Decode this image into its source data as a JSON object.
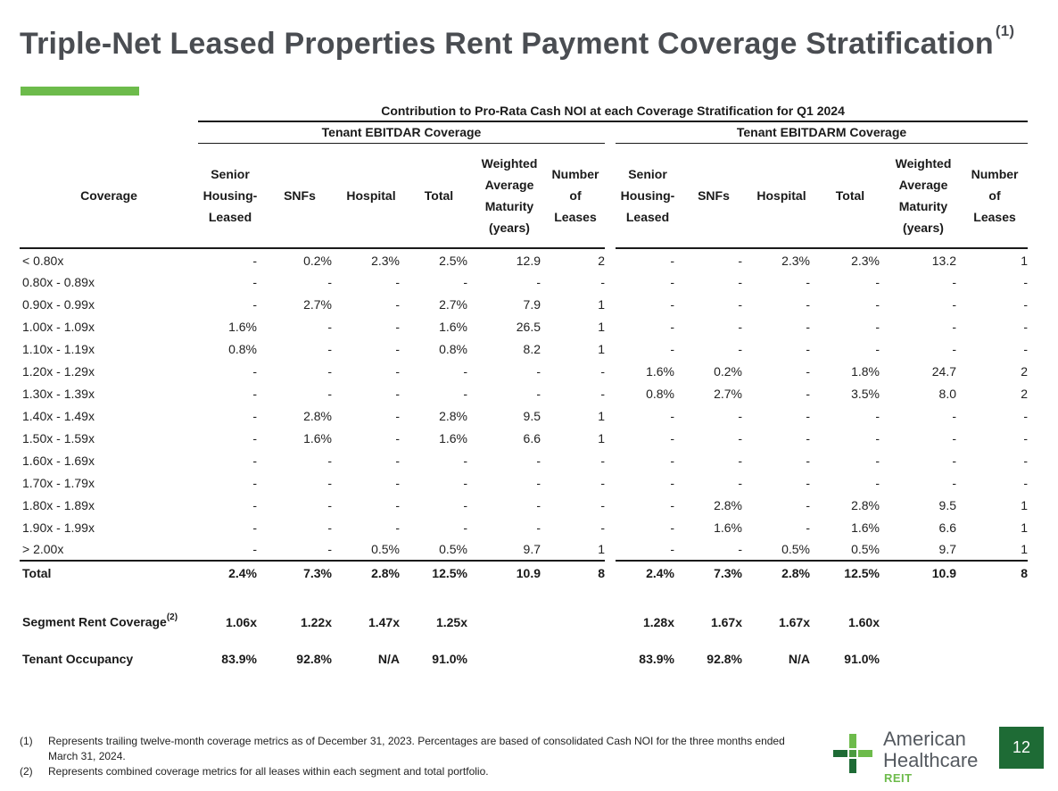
{
  "title": "Triple-Net Leased Properties Rent Payment Coverage Stratification",
  "title_sup": "(1)",
  "colors": {
    "accent": "#6dbb4b",
    "title": "#4a4d52",
    "badge": "#1e6b35"
  },
  "table": {
    "super_header": "Contribution to Pro-Rata Cash NOI at each Coverage Stratification for Q1 2024",
    "group_ebitdar": "Tenant EBITDAR Coverage",
    "group_ebitdarm": "Tenant EBITDARM Coverage",
    "col_coverage": "Coverage",
    "cols": {
      "senior": [
        "Senior",
        "Housing-",
        "Leased"
      ],
      "snfs": "SNFs",
      "hospital": "Hospital",
      "total": "Total",
      "wam": [
        "Weighted",
        "Average",
        "Maturity",
        "(years)"
      ],
      "leases": [
        "Number",
        "of",
        "Leases"
      ]
    },
    "rows": [
      {
        "label": "< 0.80x",
        "a": [
          "-",
          "0.2%",
          "2.3%",
          "2.5%",
          "12.9",
          "2"
        ],
        "b": [
          "-",
          "-",
          "2.3%",
          "2.3%",
          "13.2",
          "1"
        ]
      },
      {
        "label": "0.80x - 0.89x",
        "a": [
          "-",
          "-",
          "-",
          "-",
          "-",
          "-"
        ],
        "b": [
          "-",
          "-",
          "-",
          "-",
          "-",
          "-"
        ]
      },
      {
        "label": "0.90x - 0.99x",
        "a": [
          "-",
          "2.7%",
          "-",
          "2.7%",
          "7.9",
          "1"
        ],
        "b": [
          "-",
          "-",
          "-",
          "-",
          "-",
          "-"
        ]
      },
      {
        "label": "1.00x - 1.09x",
        "a": [
          "1.6%",
          "-",
          "-",
          "1.6%",
          "26.5",
          "1"
        ],
        "b": [
          "-",
          "-",
          "-",
          "-",
          "-",
          "-"
        ]
      },
      {
        "label": "1.10x - 1.19x",
        "a": [
          "0.8%",
          "-",
          "-",
          "0.8%",
          "8.2",
          "1"
        ],
        "b": [
          "-",
          "-",
          "-",
          "-",
          "-",
          "-"
        ]
      },
      {
        "label": "1.20x - 1.29x",
        "a": [
          "-",
          "-",
          "-",
          "-",
          "-",
          "-"
        ],
        "b": [
          "1.6%",
          "0.2%",
          "-",
          "1.8%",
          "24.7",
          "2"
        ]
      },
      {
        "label": "1.30x - 1.39x",
        "a": [
          "-",
          "-",
          "-",
          "-",
          "-",
          "-"
        ],
        "b": [
          "0.8%",
          "2.7%",
          "-",
          "3.5%",
          "8.0",
          "2"
        ]
      },
      {
        "label": "1.40x - 1.49x",
        "a": [
          "-",
          "2.8%",
          "-",
          "2.8%",
          "9.5",
          "1"
        ],
        "b": [
          "-",
          "-",
          "-",
          "-",
          "-",
          "-"
        ]
      },
      {
        "label": "1.50x - 1.59x",
        "a": [
          "-",
          "1.6%",
          "-",
          "1.6%",
          "6.6",
          "1"
        ],
        "b": [
          "-",
          "-",
          "-",
          "-",
          "-",
          "-"
        ]
      },
      {
        "label": "1.60x - 1.69x",
        "a": [
          "-",
          "-",
          "-",
          "-",
          "-",
          "-"
        ],
        "b": [
          "-",
          "-",
          "-",
          "-",
          "-",
          "-"
        ]
      },
      {
        "label": "1.70x - 1.79x",
        "a": [
          "-",
          "-",
          "-",
          "-",
          "-",
          "-"
        ],
        "b": [
          "-",
          "-",
          "-",
          "-",
          "-",
          "-"
        ]
      },
      {
        "label": "1.80x - 1.89x",
        "a": [
          "-",
          "-",
          "-",
          "-",
          "-",
          "-"
        ],
        "b": [
          "-",
          "2.8%",
          "-",
          "2.8%",
          "9.5",
          "1"
        ]
      },
      {
        "label": "1.90x - 1.99x",
        "a": [
          "-",
          "-",
          "-",
          "-",
          "-",
          "-"
        ],
        "b": [
          "-",
          "1.6%",
          "-",
          "1.6%",
          "6.6",
          "1"
        ]
      },
      {
        "label": "> 2.00x",
        "a": [
          "-",
          "-",
          "0.5%",
          "0.5%",
          "9.7",
          "1"
        ],
        "b": [
          "-",
          "-",
          "0.5%",
          "0.5%",
          "9.7",
          "1"
        ]
      }
    ],
    "total": {
      "label": "Total",
      "a": [
        "2.4%",
        "7.3%",
        "2.8%",
        "12.5%",
        "10.9",
        "8"
      ],
      "b": [
        "2.4%",
        "7.3%",
        "2.8%",
        "12.5%",
        "10.9",
        "8"
      ]
    },
    "segment": {
      "label": "Segment Rent Coverage",
      "sup": "(2)",
      "a": [
        "1.06x",
        "1.22x",
        "1.47x",
        "1.25x"
      ],
      "b": [
        "1.28x",
        "1.67x",
        "1.67x",
        "1.60x"
      ]
    },
    "occupancy": {
      "label": "Tenant Occupancy",
      "a": [
        "83.9%",
        "92.8%",
        "N/A",
        "91.0%"
      ],
      "b": [
        "83.9%",
        "92.8%",
        "N/A",
        "91.0%"
      ]
    }
  },
  "footnotes": [
    {
      "num": "(1)",
      "text": "Represents trailing twelve-month coverage metrics as of December 31, 2023. Percentages are based of consolidated Cash NOI for the three months ended March 31, 2024."
    },
    {
      "num": "(2)",
      "text": "Represents combined coverage metrics for all leases within each segment and total portfolio."
    }
  ],
  "logo": {
    "line1": "American",
    "line2": "Healthcare",
    "line3": "REIT",
    "icon": "cross-logo-icon"
  },
  "page_number": "12"
}
